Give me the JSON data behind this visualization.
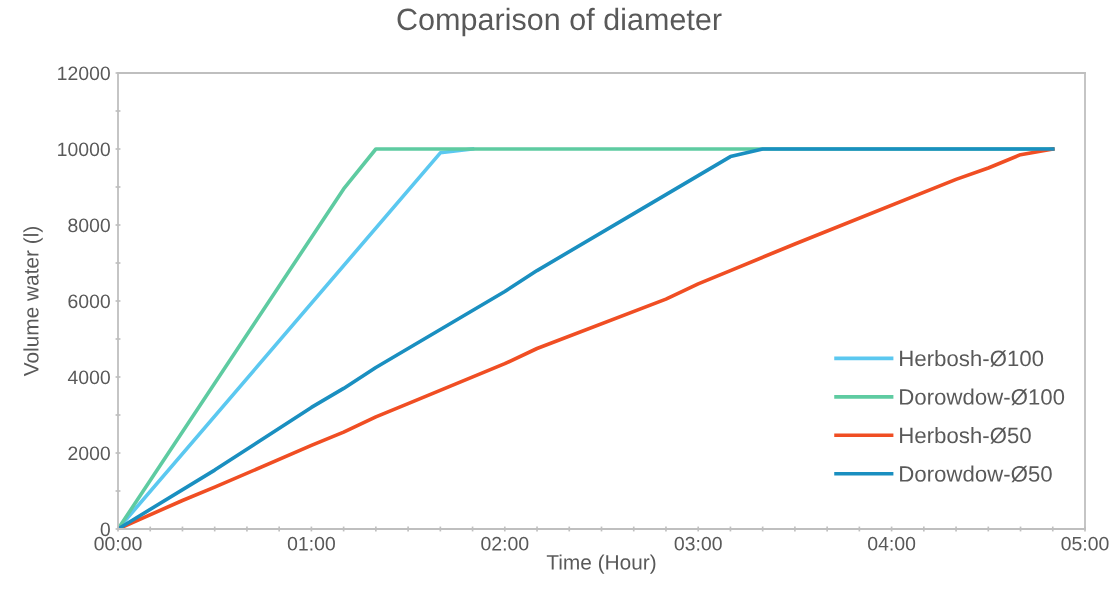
{
  "chart_data": {
    "type": "line",
    "title": "Comparison of diameter",
    "xlabel": "Time (Hour)",
    "ylabel": "Volume water (l)",
    "xlim": [
      0,
      5
    ],
    "ylim": [
      0,
      12000
    ],
    "xticks": [
      {
        "value": 0,
        "label": "00:00"
      },
      {
        "value": 0.1667,
        "label": null
      },
      {
        "value": 0.3333,
        "label": null
      },
      {
        "value": 0.5,
        "label": null
      },
      {
        "value": 0.6667,
        "label": null
      },
      {
        "value": 0.8333,
        "label": null
      },
      {
        "value": 1,
        "label": "01:00"
      },
      {
        "value": 1.1667,
        "label": null
      },
      {
        "value": 1.3333,
        "label": null
      },
      {
        "value": 1.5,
        "label": null
      },
      {
        "value": 1.6667,
        "label": null
      },
      {
        "value": 1.8333,
        "label": null
      },
      {
        "value": 2,
        "label": "02:00"
      },
      {
        "value": 2.1667,
        "label": null
      },
      {
        "value": 2.3333,
        "label": null
      },
      {
        "value": 2.5,
        "label": null
      },
      {
        "value": 2.6667,
        "label": null
      },
      {
        "value": 2.8333,
        "label": null
      },
      {
        "value": 3,
        "label": "03:00"
      },
      {
        "value": 3.1667,
        "label": null
      },
      {
        "value": 3.3333,
        "label": null
      },
      {
        "value": 3.5,
        "label": null
      },
      {
        "value": 3.6667,
        "label": null
      },
      {
        "value": 3.8333,
        "label": null
      },
      {
        "value": 4,
        "label": "04:00"
      },
      {
        "value": 4.1667,
        "label": null
      },
      {
        "value": 4.3333,
        "label": null
      },
      {
        "value": 4.5,
        "label": null
      },
      {
        "value": 4.6667,
        "label": null
      },
      {
        "value": 4.8333,
        "label": null
      },
      {
        "value": 5,
        "label": "05:00"
      }
    ],
    "yticks": [
      0,
      {
        "value": 1000,
        "label": null
      },
      2000,
      {
        "value": 3000,
        "label": null
      },
      4000,
      {
        "value": 5000,
        "label": null
      },
      6000,
      {
        "value": 7000,
        "label": null
      },
      8000,
      {
        "value": 9000,
        "label": null
      },
      10000,
      {
        "value": 11000,
        "label": null
      },
      12000
    ],
    "grid": false,
    "legend": "bottom right",
    "marker": "none",
    "line_style": "solid",
    "series": [
      {
        "name": "Herbosh-Ø100",
        "color": "#5bc8f0",
        "x": [
          0,
          1.6667,
          1.8333
        ],
        "values": [
          0,
          9900,
          10000
        ]
      },
      {
        "name": "Dorowdow-Ø100",
        "color": "#5ecba1",
        "x": [
          0,
          1.1667,
          1.3333,
          4.8333
        ],
        "values": [
          0,
          8950,
          10000,
          10000
        ]
      },
      {
        "name": "Herbosh-Ø50",
        "color": "#f04e23",
        "x": [
          0,
          0.3333,
          0.5,
          1.0,
          1.1667,
          1.3333,
          1.5,
          2.0,
          2.1667,
          2.8333,
          3.0,
          3.1667,
          3.5,
          4.3333,
          4.5,
          4.6667,
          4.8333
        ],
        "values": [
          0,
          750,
          1100,
          2200,
          2550,
          2950,
          3300,
          4350,
          4750,
          6050,
          6450,
          6800,
          7500,
          9200,
          9500,
          9850,
          10000
        ]
      },
      {
        "name": "Dorowdow-Ø50",
        "color": "#1a8fc0",
        "x": [
          0,
          0.5,
          1.0,
          1.1667,
          1.3333,
          1.6667,
          2.0,
          2.1667,
          2.6667,
          3.0,
          3.1667,
          3.3333,
          4.8333
        ],
        "values": [
          0,
          1550,
          3200,
          3700,
          4250,
          5250,
          6250,
          6800,
          8300,
          9300,
          9800,
          10000,
          10000
        ]
      }
    ]
  }
}
